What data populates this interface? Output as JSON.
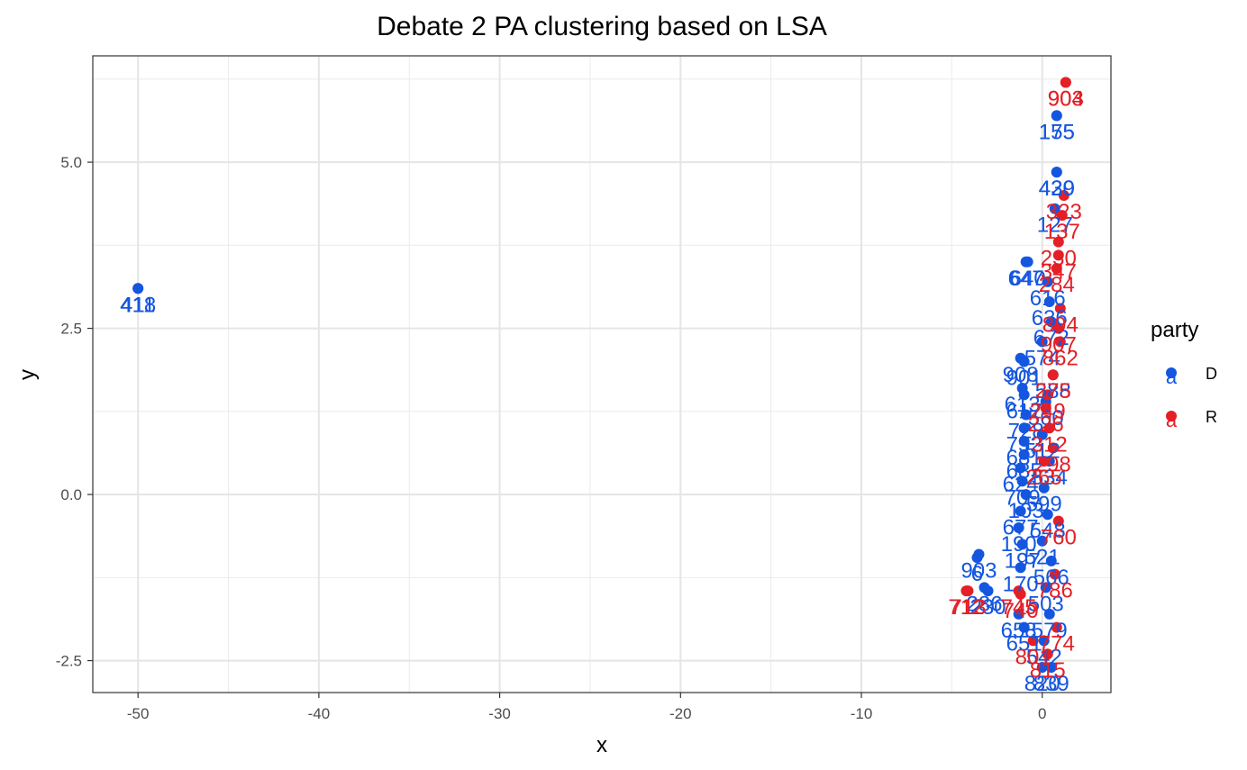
{
  "chart_data": {
    "type": "scatter",
    "title": "Debate 2 PA clustering based on LSA",
    "xlabel": "x",
    "ylabel": "y",
    "xlim": [
      -52.5,
      3.8
    ],
    "ylim": [
      -2.98,
      6.6
    ],
    "x_ticks": [
      -50,
      -40,
      -30,
      -20,
      -10,
      0
    ],
    "x_tick_labels": [
      "-50",
      "-40",
      "-30",
      "-20",
      "-10",
      "0"
    ],
    "y_ticks": [
      -2.5,
      0.0,
      2.5,
      5.0
    ],
    "y_tick_labels": [
      "-2.5",
      "0.0",
      "2.5",
      "5.0"
    ],
    "grid": true,
    "legend": {
      "title": "party",
      "position": "right",
      "entries": [
        {
          "name": "D",
          "color": "#1456e0"
        },
        {
          "name": "R",
          "color": "#e41f26"
        }
      ]
    },
    "series": [
      {
        "name": "D",
        "color": "#1456e0",
        "points": [
          {
            "x": -50.0,
            "y": 3.1,
            "label": "418"
          },
          {
            "x": -50.0,
            "y": 3.1,
            "label": "411"
          },
          {
            "x": 0.8,
            "y": 5.7,
            "label": "155"
          },
          {
            "x": 0.8,
            "y": 5.7,
            "label": "175"
          },
          {
            "x": 0.8,
            "y": 4.85,
            "label": "439"
          },
          {
            "x": 0.8,
            "y": 4.85,
            "label": "420"
          },
          {
            "x": 0.7,
            "y": 4.3,
            "label": "127"
          },
          {
            "x": -0.9,
            "y": 3.5,
            "label": "647"
          },
          {
            "x": -0.8,
            "y": 3.5,
            "label": "640"
          },
          {
            "x": 0.3,
            "y": 3.2,
            "label": "616"
          },
          {
            "x": 0.4,
            "y": 2.9,
            "label": "636"
          },
          {
            "x": 0.5,
            "y": 2.6,
            "label": "672"
          },
          {
            "x": -1.2,
            "y": 2.05,
            "label": "908"
          },
          {
            "x": -1.0,
            "y": 2.0,
            "label": "901"
          },
          {
            "x": -1.1,
            "y": 1.6,
            "label": "613"
          },
          {
            "x": -1.0,
            "y": 1.5,
            "label": "617"
          },
          {
            "x": -0.9,
            "y": 1.2,
            "label": "728"
          },
          {
            "x": -1.0,
            "y": 1.0,
            "label": "752"
          },
          {
            "x": -1.0,
            "y": 0.8,
            "label": "681"
          },
          {
            "x": -1.0,
            "y": 0.6,
            "label": "685"
          },
          {
            "x": -1.2,
            "y": 0.4,
            "label": "624"
          },
          {
            "x": -1.1,
            "y": 0.2,
            "label": "709"
          },
          {
            "x": -0.9,
            "y": 0.0,
            "label": "103"
          },
          {
            "x": -1.2,
            "y": -0.25,
            "label": "677"
          },
          {
            "x": -1.3,
            "y": -0.5,
            "label": "190"
          },
          {
            "x": -1.1,
            "y": -0.75,
            "label": "197"
          },
          {
            "x": -3.5,
            "y": -0.9,
            "label": "903"
          },
          {
            "x": -3.6,
            "y": -0.95,
            "label": "6"
          },
          {
            "x": -1.2,
            "y": -1.1,
            "label": "170"
          },
          {
            "x": -3.2,
            "y": -1.4,
            "label": "236"
          },
          {
            "x": -3.0,
            "y": -1.45,
            "label": "230"
          },
          {
            "x": -1.3,
            "y": -1.8,
            "label": "658"
          },
          {
            "x": -1.0,
            "y": -2.0,
            "label": "651"
          },
          {
            "x": 0.0,
            "y": -2.6,
            "label": "820"
          },
          {
            "x": 0.5,
            "y": -2.6,
            "label": "839"
          },
          {
            "x": 0.0,
            "y": 2.3,
            "label": "574"
          },
          {
            "x": 0.6,
            "y": 1.8,
            "label": "588"
          },
          {
            "x": 0.2,
            "y": 1.4,
            "label": "560"
          },
          {
            "x": 0.0,
            "y": 0.9,
            "label": "512"
          },
          {
            "x": 0.4,
            "y": 0.5,
            "label": "534"
          },
          {
            "x": 0.1,
            "y": 0.1,
            "label": "599"
          },
          {
            "x": 0.3,
            "y": -0.3,
            "label": "548"
          },
          {
            "x": 0.0,
            "y": -0.7,
            "label": "521"
          },
          {
            "x": 0.5,
            "y": -1.0,
            "label": "566"
          },
          {
            "x": 0.2,
            "y": -1.4,
            "label": "503"
          },
          {
            "x": 0.4,
            "y": -1.8,
            "label": "579"
          },
          {
            "x": 0.1,
            "y": -2.2,
            "label": "542"
          }
        ]
      },
      {
        "name": "R",
        "color": "#e41f26",
        "points": [
          {
            "x": 1.3,
            "y": 6.2,
            "label": "903"
          },
          {
            "x": 1.3,
            "y": 6.2,
            "label": "904"
          },
          {
            "x": 1.2,
            "y": 4.5,
            "label": "323"
          },
          {
            "x": 1.1,
            "y": 4.2,
            "label": "137"
          },
          {
            "x": 0.9,
            "y": 3.8,
            "label": "230"
          },
          {
            "x": 0.9,
            "y": 3.6,
            "label": "347"
          },
          {
            "x": 0.8,
            "y": 3.4,
            "label": "284"
          },
          {
            "x": 1.0,
            "y": 2.8,
            "label": "894"
          },
          {
            "x": 0.9,
            "y": 2.5,
            "label": "907"
          },
          {
            "x": 1.0,
            "y": 2.3,
            "label": "862"
          },
          {
            "x": 0.6,
            "y": 1.8,
            "label": "275"
          },
          {
            "x": 0.3,
            "y": 1.5,
            "label": "249"
          },
          {
            "x": 0.2,
            "y": 1.3,
            "label": "226"
          },
          {
            "x": 0.4,
            "y": 1.0,
            "label": "312"
          },
          {
            "x": 0.6,
            "y": 0.7,
            "label": "298"
          },
          {
            "x": 0.1,
            "y": 0.5,
            "label": "265"
          },
          {
            "x": -4.2,
            "y": -1.45,
            "label": "712"
          },
          {
            "x": -4.1,
            "y": -1.45,
            "label": "713"
          },
          {
            "x": -1.3,
            "y": -1.45,
            "label": "745"
          },
          {
            "x": -1.2,
            "y": -1.5,
            "label": "740"
          },
          {
            "x": -0.5,
            "y": -2.2,
            "label": "801"
          },
          {
            "x": 0.3,
            "y": -2.4,
            "label": "815"
          },
          {
            "x": 0.8,
            "y": -2.0,
            "label": "774"
          },
          {
            "x": 0.7,
            "y": -1.2,
            "label": "786"
          },
          {
            "x": 0.9,
            "y": -0.4,
            "label": "760"
          }
        ]
      }
    ]
  }
}
